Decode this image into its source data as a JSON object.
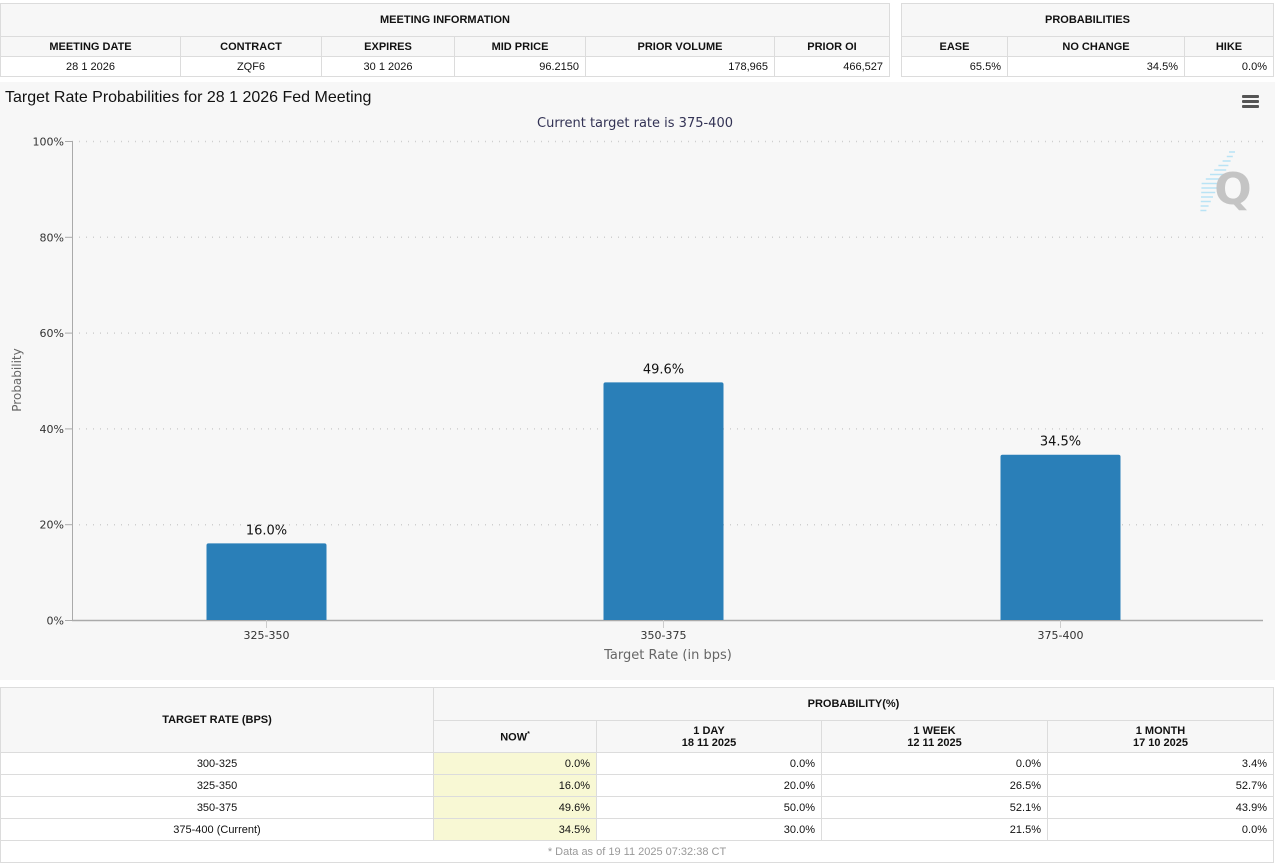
{
  "meeting_info": {
    "group_label": "MEETING INFORMATION",
    "headers": [
      "MEETING DATE",
      "CONTRACT",
      "EXPIRES",
      "MID PRICE",
      "PRIOR VOLUME",
      "PRIOR OI"
    ],
    "values": [
      "28 1 2026",
      "ZQF6",
      "30 1 2026",
      "96.2150",
      "178,965",
      "466,527"
    ]
  },
  "probabilities": {
    "group_label": "PROBABILITIES",
    "headers": [
      "EASE",
      "NO CHANGE",
      "HIKE"
    ],
    "values": [
      "65.5%",
      "34.5%",
      "0.0%"
    ]
  },
  "chart_title": "Target Rate Probabilities for 28 1 2026 Fed Meeting",
  "menu_icon": "hamburger-menu-icon",
  "watermark_icon": "q-logo-icon",
  "watermark_text": "Q",
  "chart_data": {
    "type": "bar",
    "title": "Target Rate Probabilities for 28 1 2026 Fed Meeting",
    "subtitle": "Current target rate is 375-400",
    "categories": [
      "325-350",
      "350-375",
      "375-400"
    ],
    "values": [
      16.0,
      49.6,
      34.5
    ],
    "data_labels": [
      "16.0%",
      "49.6%",
      "34.5%"
    ],
    "xlabel": "Target Rate (in bps)",
    "ylabel": "Probability",
    "ylim": [
      0,
      100
    ],
    "yticks": [
      0,
      20,
      40,
      60,
      80,
      100
    ],
    "ytick_labels": [
      "0%",
      "20%",
      "40%",
      "60%",
      "80%",
      "100%"
    ],
    "grid": true,
    "bar_color": "#2a7fb8"
  },
  "rate_table": {
    "target_header": "TARGET RATE (BPS)",
    "prob_header": "PROBABILITY(%)",
    "columns": [
      {
        "label": "NOW",
        "marker": "*",
        "date": ""
      },
      {
        "label": "1 DAY",
        "date": "18 11 2025"
      },
      {
        "label": "1 WEEK",
        "date": "12 11 2025"
      },
      {
        "label": "1 MONTH",
        "date": "17 10 2025"
      }
    ],
    "rows": [
      {
        "rate": "300-325",
        "values": [
          "0.0%",
          "0.0%",
          "0.0%",
          "3.4%"
        ]
      },
      {
        "rate": "325-350",
        "values": [
          "16.0%",
          "20.0%",
          "26.5%",
          "52.7%"
        ]
      },
      {
        "rate": "350-375",
        "values": [
          "49.6%",
          "50.0%",
          "52.1%",
          "43.9%"
        ]
      },
      {
        "rate": "375-400 (Current)",
        "values": [
          "34.5%",
          "30.0%",
          "21.5%",
          "0.0%"
        ]
      }
    ],
    "footnote": "* Data as of 19 11 2025 07:32:38 CT"
  }
}
